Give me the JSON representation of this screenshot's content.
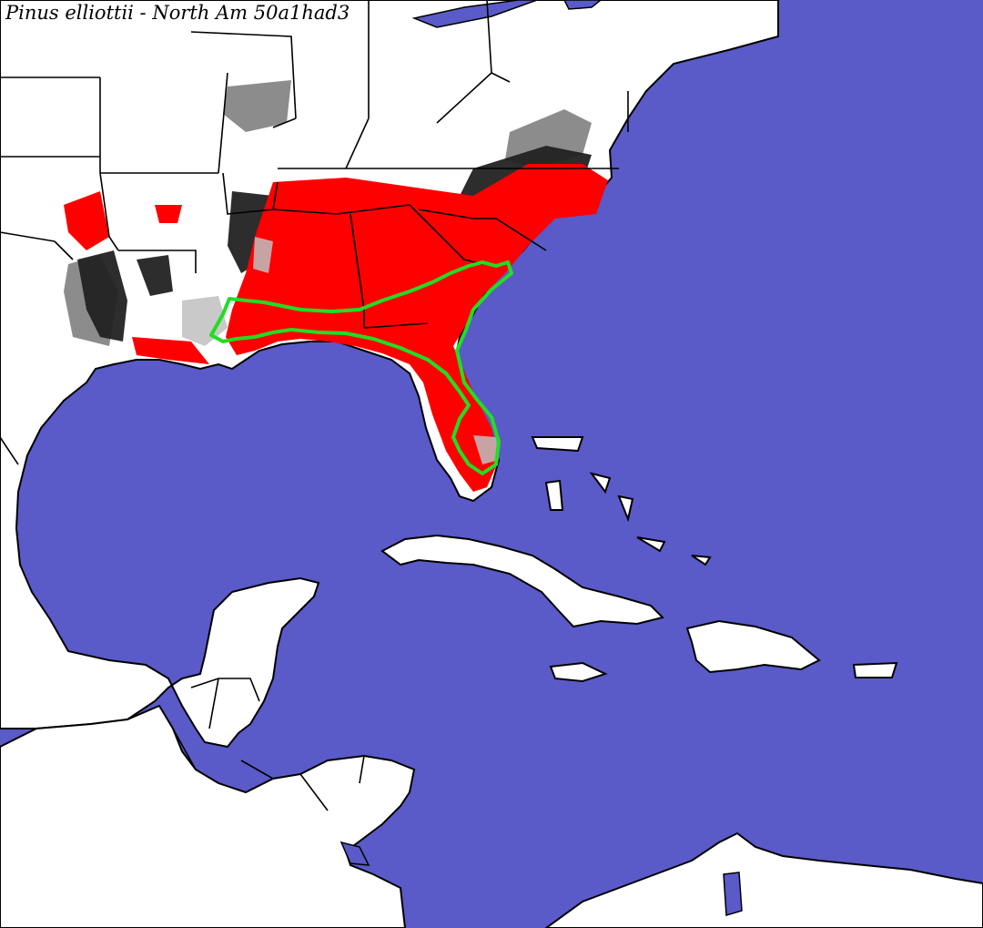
{
  "map": {
    "title": "Pinus elliottii - North Am 50a1had3",
    "colors": {
      "ocean": "#5a5ac8",
      "land": "#ffffff",
      "boundary": "#000000",
      "suitable_high": "#ff0000",
      "suitable_low": "#222222",
      "suitable_mid": "#7f7f7f",
      "marginal": "#c0c0c0",
      "observed_range": "#22dd22"
    }
  }
}
